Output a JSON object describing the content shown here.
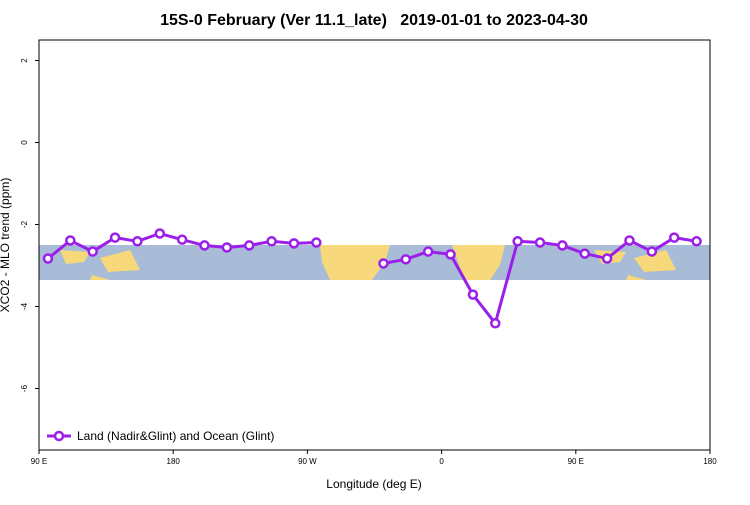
{
  "chart_data": {
    "type": "line",
    "title": "15S-0 February (Ver 11.1_late)   2019-01-01 to 2023-04-30",
    "x_label": "Longitude (deg E)",
    "y_label": "XCO2 - MLO trend (ppm)",
    "x": [
      96,
      111,
      126,
      141,
      156,
      171,
      186,
      201,
      216,
      231,
      246,
      261,
      276,
      291,
      306,
      321,
      336,
      351,
      366,
      381,
      396,
      411,
      426,
      441,
      456,
      471,
      486,
      501,
      516,
      531
    ],
    "series": [
      {
        "name": "Land (Nadir&Glint) and Ocean (Glint)",
        "color": "#9b1fe8",
        "values": [
          -2.83,
          -2.39,
          -2.66,
          -2.32,
          -2.41,
          -2.22,
          -2.37,
          -2.51,
          -2.56,
          -2.51,
          -2.41,
          -2.46,
          -2.44,
          null,
          null,
          -2.95,
          -2.85,
          -2.66,
          -2.73,
          -3.71,
          -4.41,
          -2.41,
          -2.44,
          -2.51,
          -2.71,
          -2.83,
          -2.39,
          -2.66,
          -2.32,
          -2.41
        ]
      }
    ],
    "xlim": [
      90,
      540
    ],
    "xticks": [
      {
        "value": 90,
        "label": "90 E"
      },
      180,
      {
        "value": 270,
        "label": "90 W"
      },
      {
        "value": 360,
        "label": "0"
      },
      {
        "value": 450,
        "label": "90 E"
      },
      {
        "value": 540,
        "label": "180"
      }
    ],
    "ylim": [
      -7.5,
      2.5
    ],
    "yticks": [
      2,
      0,
      -2,
      -4,
      -6
    ],
    "legend": "bottom-left"
  }
}
